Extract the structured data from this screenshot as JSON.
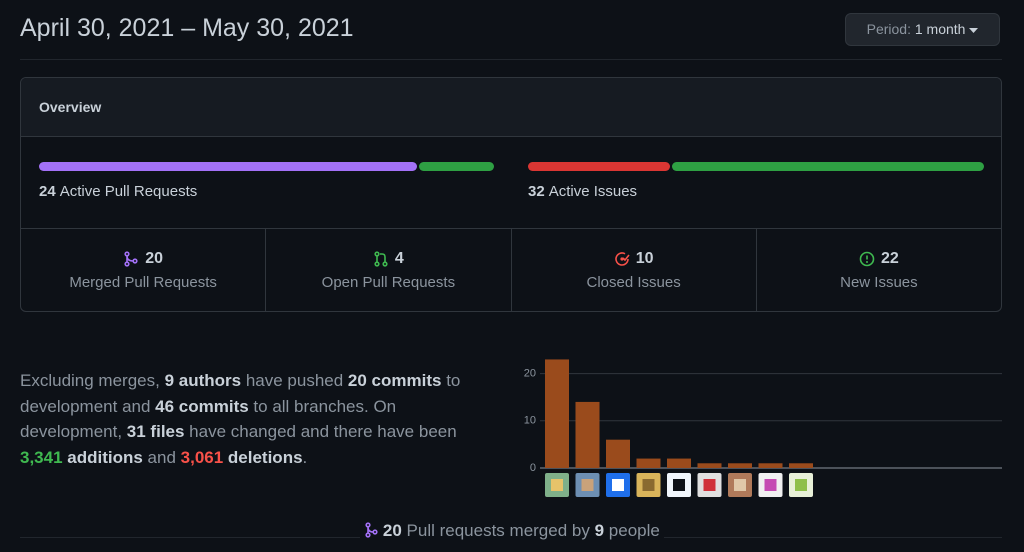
{
  "header": {
    "title": "April 30, 2021 – May 30, 2021",
    "period_label": "Period:",
    "period_value": "1 month"
  },
  "overview": {
    "title": "Overview",
    "pull_requests": {
      "active": 24,
      "label": "Active Pull Requests"
    },
    "issues": {
      "active": 32,
      "label": "Active Issues"
    },
    "stats": [
      {
        "value": 20,
        "label": "Merged Pull Requests"
      },
      {
        "value": 4,
        "label": "Open Pull Requests"
      },
      {
        "value": 10,
        "label": "Closed Issues"
      },
      {
        "value": 22,
        "label": "New Issues"
      }
    ]
  },
  "summary": {
    "parts": [
      "Excluding merges, ",
      "9 authors",
      " have pushed ",
      "20 commits",
      " to development and ",
      "46 commits",
      " to all branches. On development, ",
      "31 files",
      " have changed and there have been ",
      "3,341",
      " additions",
      " and ",
      "3,061",
      " deletions",
      "."
    ]
  },
  "commits_chart": {
    "type": "bar",
    "values": [
      23,
      14,
      6,
      2,
      2,
      1,
      1,
      1,
      1
    ],
    "color": "#9a4b1c",
    "ylim": [
      0,
      25
    ],
    "yticks": [
      0,
      10,
      20
    ],
    "grid": true
  },
  "footer": {
    "count": "20",
    "text": "Pull requests merged by",
    "people": "9",
    "people_text": "people"
  }
}
